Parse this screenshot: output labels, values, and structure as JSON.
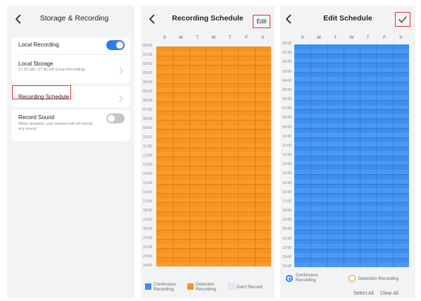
{
  "storage": {
    "title": "Storage & Recording",
    "local_recording": {
      "label": "Local Recording",
      "enabled": true
    },
    "local_storage": {
      "label": "Local Storage",
      "detail": "27.55 GB / 27.80 GB (Loop Recording)"
    },
    "recording_schedule": {
      "label": "Recording Schedule"
    },
    "record_sound": {
      "label": "Record Sound",
      "hint": "When disabled, your camera will not record any sound.",
      "enabled": false
    }
  },
  "schedule": {
    "title": "Recording Schedule",
    "edit_label": "Edit",
    "mode": "detection",
    "legend": [
      {
        "label": "Continuous Recording",
        "color": "#3c8ff0"
      },
      {
        "label": "Detection Recording",
        "color": "#f7931e"
      },
      {
        "label": "Don't Record",
        "color": "#e6ebf5"
      }
    ]
  },
  "edit_schedule": {
    "title": "Edit Schedule",
    "mode": "continuous",
    "options": [
      {
        "label": "Continuous Recording",
        "selected": true
      },
      {
        "label": "Detection Recording",
        "selected": false
      }
    ],
    "select_all_label": "Select All",
    "clear_all_label": "Clear All"
  },
  "days": [
    "S",
    "M",
    "T",
    "W",
    "T",
    "F",
    "S"
  ],
  "hours": [
    "00:00",
    "01:00",
    "02:00",
    "03:00",
    "04:00",
    "05:00",
    "06:00",
    "07:00",
    "08:00",
    "09:00",
    "10:00",
    "11:00",
    "12:00",
    "13:00",
    "14:00",
    "15:00",
    "16:00",
    "17:00",
    "18:00",
    "19:00",
    "20:00",
    "21:00",
    "22:00",
    "23:00",
    "24:00"
  ],
  "colors": {
    "accent": "#2d7bf6",
    "continuous": "#3c8ff0",
    "detection": "#f7931e",
    "highlight": "#e03131"
  }
}
